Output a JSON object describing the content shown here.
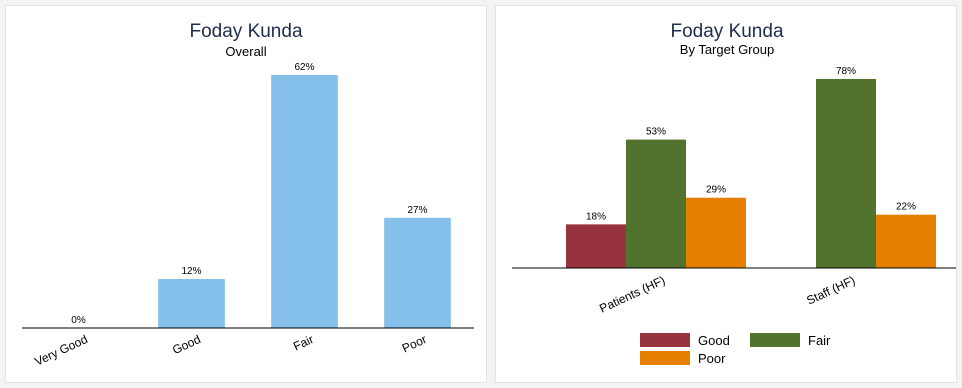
{
  "chart_data": [
    {
      "type": "bar",
      "title": "Foday Kunda",
      "subtitle": "Overall",
      "categories": [
        "Very Good",
        "Good",
        "Fair",
        "Poor"
      ],
      "values": [
        0,
        12,
        62,
        27
      ],
      "value_labels": [
        "0%",
        "12%",
        "62%",
        "27%"
      ],
      "ylim": [
        0,
        62
      ],
      "bar_color": "#85c0ea",
      "grid": false,
      "legend": "none"
    },
    {
      "type": "bar",
      "title": "Foday Kunda",
      "subtitle": "By Target Group",
      "categories": [
        "Patients (HF)",
        "Staff (HF)"
      ],
      "series": [
        {
          "name": "Good",
          "color": "#97333d",
          "values": [
            18,
            null
          ],
          "value_labels": [
            "18%",
            ""
          ]
        },
        {
          "name": "Fair",
          "color": "#52732d",
          "values": [
            53,
            78
          ],
          "value_labels": [
            "53%",
            "78%"
          ]
        },
        {
          "name": "Poor",
          "color": "#e47f00",
          "values": [
            29,
            22
          ],
          "value_labels": [
            "29%",
            "22%"
          ]
        }
      ],
      "ylim": [
        0,
        78
      ],
      "grid": false,
      "legend": "bottom"
    }
  ]
}
